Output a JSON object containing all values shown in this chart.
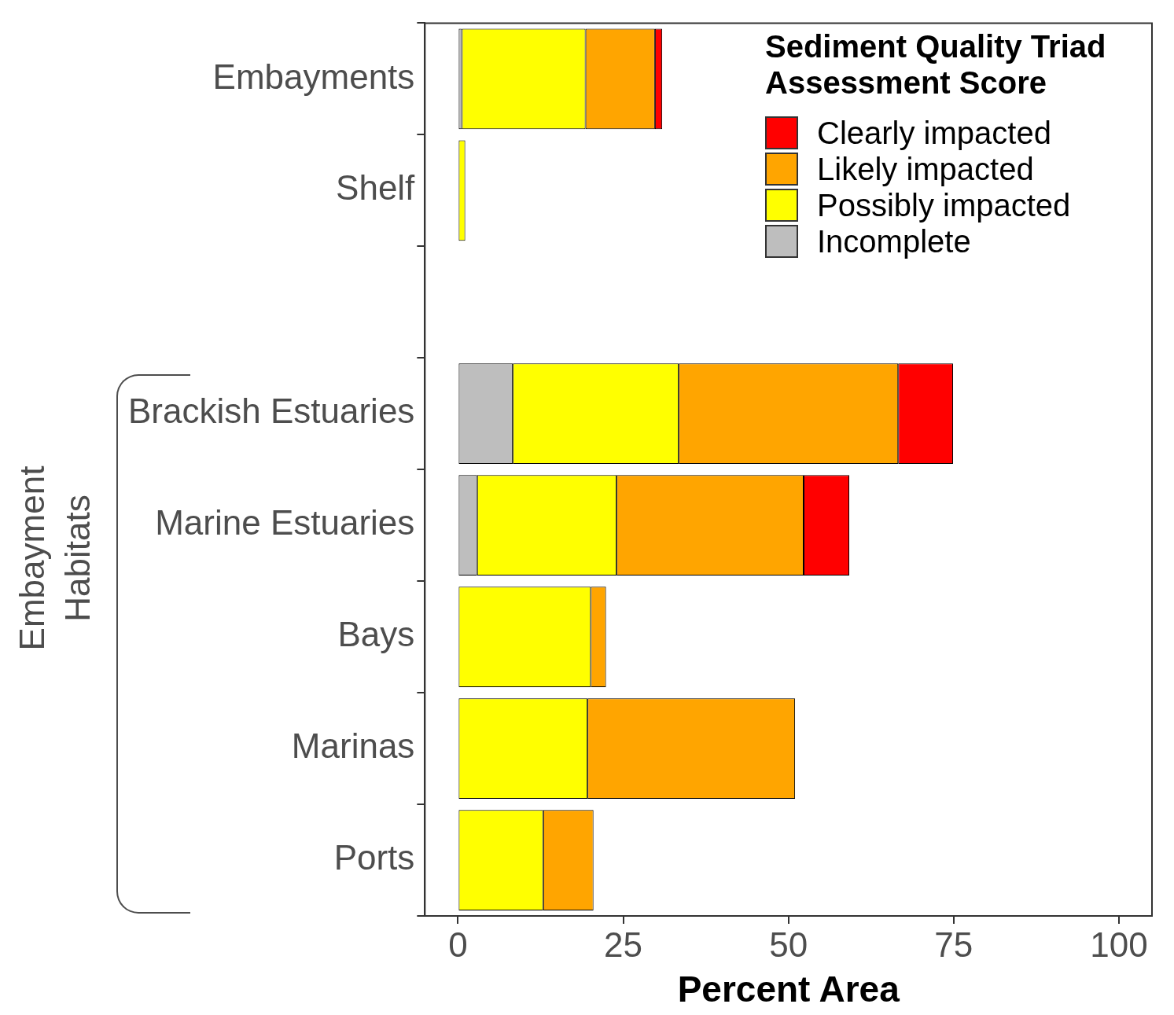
{
  "chart_data": {
    "type": "bar",
    "orientation": "horizontal",
    "stacked": true,
    "categories": [
      "Embayments",
      "Shelf",
      null,
      "Brackish Estuaries",
      "Marine Estuaries",
      "Bays",
      "Marinas",
      "Ports"
    ],
    "series": [
      {
        "name": "Incomplete",
        "color": "#bebebe",
        "values": [
          0.6,
          0,
          0,
          8.3,
          2.9,
          0,
          0,
          0
        ]
      },
      {
        "name": "Possibly impacted",
        "color": "#ffff00",
        "values": [
          18.7,
          1.1,
          0,
          25.1,
          21.1,
          20.1,
          19.6,
          12.9
        ]
      },
      {
        "name": "Likely impacted",
        "color": "#ffa500",
        "values": [
          10.5,
          0,
          0,
          33.2,
          28.3,
          2.3,
          31.4,
          7.6
        ]
      },
      {
        "name": "Clearly impacted",
        "color": "#ff0000",
        "values": [
          1.1,
          0,
          0,
          8.3,
          6.9,
          0,
          0,
          0
        ]
      }
    ],
    "xlim": [
      -5,
      105
    ],
    "xticks": [
      0,
      25,
      50,
      75,
      100
    ],
    "xlabel": "Percent Area",
    "legend_title": "Sediment Quality Triad Assessment Score",
    "legend": "top right",
    "grid": false,
    "annotations": [
      "Embayment Habitats"
    ]
  }
}
